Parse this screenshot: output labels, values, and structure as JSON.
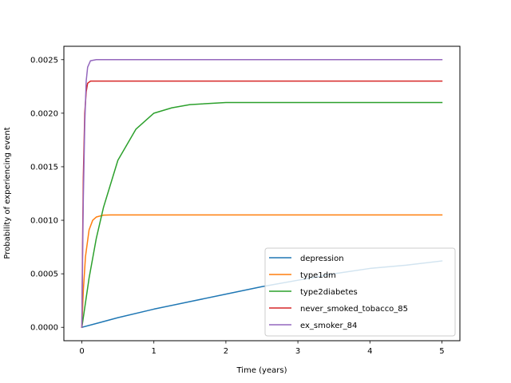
{
  "chart_data": {
    "type": "line",
    "title": "",
    "xlabel": "Time (years)",
    "ylabel": "Probability of experiencing event",
    "xlim": [
      -0.25,
      5.25
    ],
    "ylim": [
      -0.000125,
      0.002625
    ],
    "xticks": [
      0,
      1,
      2,
      3,
      4,
      5
    ],
    "xtick_labels": [
      "0",
      "1",
      "2",
      "3",
      "4",
      "5"
    ],
    "yticks": [
      0,
      0.0005,
      0.001,
      0.0015,
      0.002,
      0.0025
    ],
    "ytick_labels": [
      "0.0000",
      "0.0005",
      "0.0010",
      "0.0015",
      "0.0020",
      "0.0025"
    ],
    "grid": false,
    "legend_position": "lower-right",
    "series": [
      {
        "name": "depression",
        "color": "#1f77b4",
        "x": [
          0,
          0.5,
          1,
          1.5,
          2,
          2.5,
          3,
          3.5,
          4,
          4.5,
          5
        ],
        "y": [
          0,
          9e-05,
          0.00017,
          0.00024,
          0.00031,
          0.00038,
          0.00044,
          0.0005,
          0.00055,
          0.00058,
          0.00062
        ]
      },
      {
        "name": "type1dm",
        "color": "#ff7f0e",
        "x": [
          0,
          0.02,
          0.05,
          0.1,
          0.15,
          0.2,
          0.3,
          0.4,
          0.5,
          1,
          2,
          3,
          4,
          5
        ],
        "y": [
          0,
          0.00034,
          0.00066,
          0.00091,
          0.001,
          0.00103,
          0.001048,
          0.00105,
          0.00105,
          0.00105,
          0.00105,
          0.00105,
          0.00105,
          0.00105
        ]
      },
      {
        "name": "type2diabetes",
        "color": "#2ca02c",
        "x": [
          0,
          0.1,
          0.2,
          0.3,
          0.5,
          0.75,
          1,
          1.25,
          1.5,
          2,
          2.5,
          3,
          4,
          5
        ],
        "y": [
          0,
          0.00046,
          0.00083,
          0.00112,
          0.00156,
          0.00185,
          0.002,
          0.00205,
          0.00208,
          0.0021,
          0.0021,
          0.0021,
          0.0021,
          0.0021
        ]
      },
      {
        "name": "never_smoked_tobacco_85",
        "color": "#d62728",
        "x": [
          0,
          0.01,
          0.02,
          0.04,
          0.06,
          0.08,
          0.12,
          0.2,
          1,
          2,
          3,
          4,
          5
        ],
        "y": [
          0,
          0.0008,
          0.0014,
          0.002,
          0.0022,
          0.00228,
          0.0023,
          0.0023,
          0.0023,
          0.0023,
          0.0023,
          0.0023,
          0.0023
        ]
      },
      {
        "name": "ex_smoker_84",
        "color": "#9467bd",
        "x": [
          0,
          0.01,
          0.02,
          0.04,
          0.06,
          0.08,
          0.12,
          0.2,
          1,
          2,
          3,
          4,
          5
        ],
        "y": [
          0,
          0.00065,
          0.0012,
          0.0019,
          0.0023,
          0.00243,
          0.00249,
          0.0025,
          0.0025,
          0.0025,
          0.0025,
          0.0025,
          0.0025
        ]
      }
    ]
  }
}
